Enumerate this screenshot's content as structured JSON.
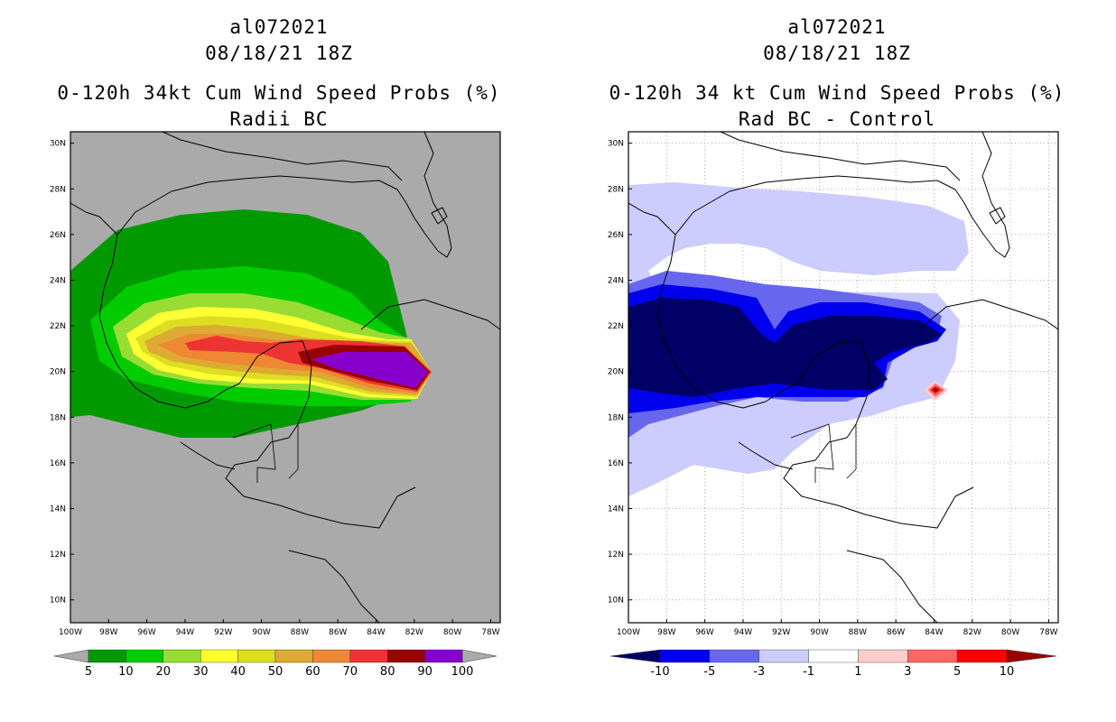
{
  "panels": [
    {
      "id": "left",
      "title": {
        "line1": "al072021",
        "line2": "08/18/21 18Z",
        "line3": "0-120h 34kt Cum Wind Speed Probs (%)",
        "line4": "Radii BC"
      },
      "lat_labels": [
        "30N",
        "28N",
        "26N",
        "24N",
        "22N",
        "20N",
        "18N",
        "16N",
        "14N",
        "12N",
        "10N"
      ],
      "lon_labels": [
        "100W",
        "98W",
        "96W",
        "94W",
        "92W",
        "90W",
        "88W",
        "86W",
        "84W",
        "82W",
        "80W",
        "78W"
      ],
      "colorbar": {
        "colors": [
          "#009900",
          "#00cc00",
          "#99dd33",
          "#ffff33",
          "#dddd22",
          "#ddaa33",
          "#ee8833",
          "#ee3333",
          "#990000",
          "#8800cc"
        ],
        "labels": [
          "5",
          "10",
          "20",
          "30",
          "40",
          "50",
          "60",
          "70",
          "80",
          "90",
          "100"
        ]
      }
    },
    {
      "id": "right",
      "title": {
        "line1": "al072021",
        "line2": "08/18/21 18Z",
        "line3": "0-120h 34 kt Cum Wind Speed Probs (%)",
        "line4": "Rad BC - Control"
      },
      "lat_labels": [
        "30N",
        "28N",
        "26N",
        "24N",
        "22N",
        "20N",
        "18N",
        "16N",
        "14N",
        "12N",
        "10N"
      ],
      "lon_labels": [
        "100W",
        "98W",
        "96W",
        "94W",
        "92W",
        "90W",
        "88W",
        "86W",
        "84W",
        "82W",
        "80W",
        "78W"
      ],
      "colorbar": {
        "colors": [
          "#000066",
          "#0000ee",
          "#6666ee",
          "#ccccff",
          "#ffffff",
          "#ffcccc",
          "#ff6666",
          "#ff0000",
          "#990000"
        ],
        "labels": [
          "-10",
          "-5",
          "-3",
          "-1",
          "1",
          "3",
          "5",
          "10"
        ]
      }
    }
  ],
  "colors": {
    "land_gray": "#aaaaaa",
    "axis": "#000000"
  }
}
